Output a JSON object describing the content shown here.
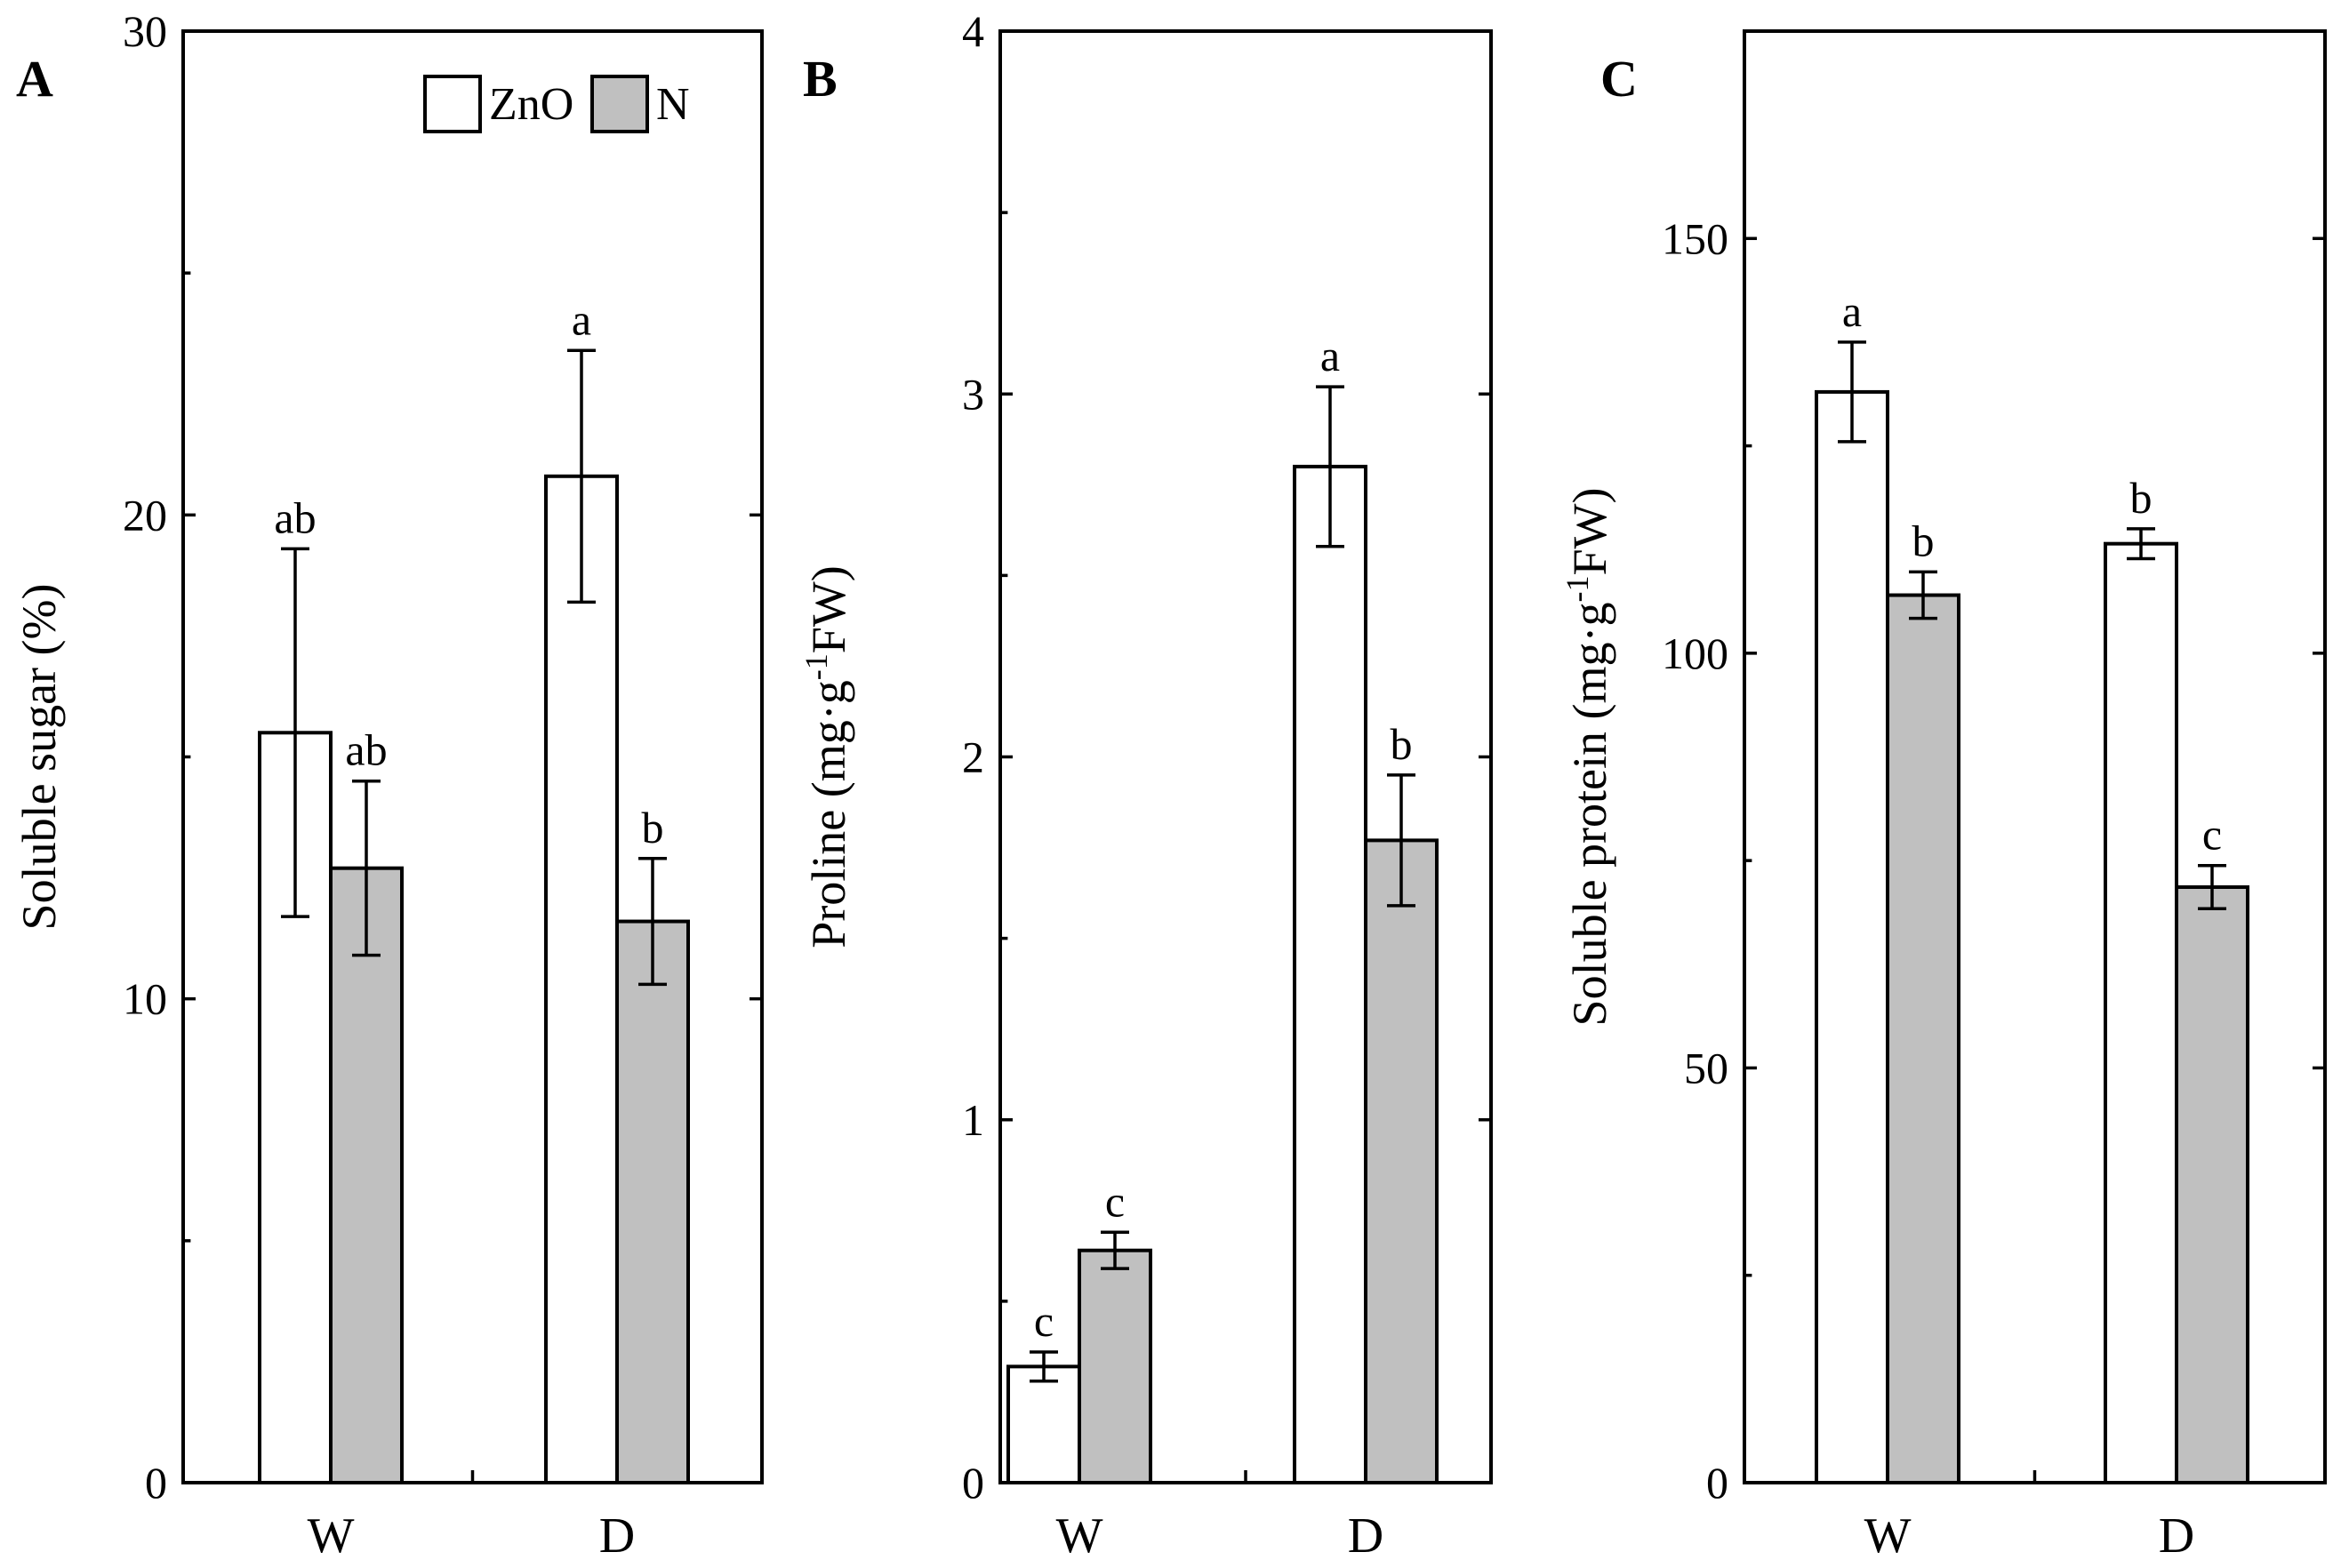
{
  "chart_data": [
    {
      "type": "bar",
      "panel_label": "A",
      "ylabel": "Soluble sugar (%)",
      "ylim": [
        0,
        30
      ],
      "yticks": [
        0,
        10,
        20,
        30
      ],
      "categories": [
        "W",
        "D"
      ],
      "series": [
        {
          "name": "ZnO",
          "color": "#ffffff",
          "values": [
            15.5,
            20.8
          ],
          "errors": [
            3.8,
            2.6
          ],
          "labels": [
            "ab",
            "a"
          ]
        },
        {
          "name": "N",
          "color": "#c0c0c0",
          "values": [
            12.7,
            11.6
          ],
          "errors": [
            1.8,
            1.3
          ],
          "labels": [
            "ab",
            "b"
          ]
        }
      ],
      "legend": {
        "position": "top-right",
        "entries": [
          "ZnO",
          "N"
        ]
      }
    },
    {
      "type": "bar",
      "panel_label": "B",
      "ylabel_main": "Proline (mg·g",
      "ylabel_sup": "-1",
      "ylabel_tail": "FW)",
      "ylim": [
        0,
        4
      ],
      "yticks": [
        0,
        1,
        2,
        3,
        4
      ],
      "categories": [
        "W",
        "D"
      ],
      "series": [
        {
          "name": "ZnO",
          "color": "#ffffff",
          "values": [
            0.32,
            2.8
          ],
          "errors": [
            0.04,
            0.22
          ],
          "labels": [
            "c",
            "a"
          ]
        },
        {
          "name": "N",
          "color": "#c0c0c0",
          "values": [
            0.64,
            1.77
          ],
          "errors": [
            0.05,
            0.18
          ],
          "labels": [
            "c",
            "b"
          ]
        }
      ]
    },
    {
      "type": "bar",
      "panel_label": "C",
      "ylabel_main": "Soluble protein (mg·g",
      "ylabel_sup": "-1",
      "ylabel_tail": "FW)",
      "ylim": [
        0,
        175
      ],
      "yticks": [
        0,
        50,
        100,
        150
      ],
      "categories": [
        "W",
        "D"
      ],
      "series": [
        {
          "name": "ZnO",
          "color": "#ffffff",
          "values": [
            131.5,
            113.2
          ],
          "errors": [
            6.0,
            1.8
          ],
          "labels": [
            "a",
            "b"
          ]
        },
        {
          "name": "N",
          "color": "#c0c0c0",
          "values": [
            107.0,
            71.8
          ],
          "errors": [
            2.8,
            2.6
          ],
          "labels": [
            "b",
            "c"
          ]
        }
      ]
    }
  ]
}
